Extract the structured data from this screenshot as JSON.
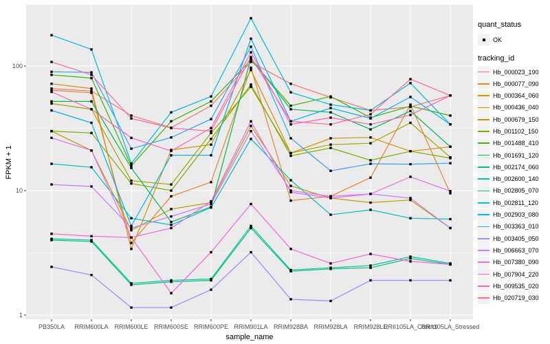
{
  "figure": {
    "background": "#ffffff",
    "panel_background": "#ebebeb",
    "grid_color": "#ffffff",
    "tick_mark_color": "#333333",
    "tick_label_color": "#4d4d4d",
    "point_color": "#000000",
    "legend_key_fill": "#f2f2f2"
  },
  "chart_data": {
    "type": "line",
    "title": "",
    "xlabel": "sample_name",
    "ylabel": "FPKM + 1",
    "y_scale": "log10",
    "y_major_ticks": [
      1,
      10,
      100
    ],
    "y_minor_ticks": [
      3.162,
      31.623
    ],
    "ylim": [
      0.9,
      310
    ],
    "grid": "major-and-minor, white on grey panel",
    "legend_position": "right",
    "point_shape": "small black square",
    "categories": [
      "PB350LA",
      "RRIM600LA",
      "RRIM600LE",
      "RRIM600SE",
      "RRIM600PE",
      "RRIM901LA",
      "RRIM928BA",
      "RRIM928LA",
      "RRIM928LE",
      "RRII105LA_Control",
      "RRII105LA_Stressed"
    ],
    "legend": {
      "quant_status_title": "quant_status",
      "ok_label": "OK",
      "tracking_id_title": "tracking_id"
    },
    "series": [
      {
        "name": "Hb_000023_190",
        "color": "#F8766D",
        "values": [
          66,
          63,
          40,
          32,
          48,
          108,
          72,
          56,
          44,
          47,
          58
        ]
      },
      {
        "name": "Hb_000077_090",
        "color": "#EA8331",
        "values": [
          64,
          61,
          3.8,
          9,
          11.7,
          97,
          8.3,
          9,
          12.7,
          49,
          9.5
        ]
      },
      {
        "name": "Hb_000364_060",
        "color": "#D89000",
        "values": [
          72,
          66,
          3.4,
          21.2,
          23.4,
          93,
          20,
          26.3,
          26.7,
          20.7,
          22.5
        ]
      },
      {
        "name": "Hb_000436_040",
        "color": "#C09B00",
        "values": [
          30,
          21,
          4.8,
          7.1,
          8,
          33,
          10.9,
          8.7,
          8,
          8.4,
          5
        ]
      },
      {
        "name": "Hb_000679_150",
        "color": "#A3A500",
        "values": [
          50,
          45,
          12,
          11.2,
          29,
          68,
          20,
          23.4,
          24,
          35,
          18.5
        ]
      },
      {
        "name": "Hb_001102_150",
        "color": "#7CAE00",
        "values": [
          30,
          29,
          11.4,
          10,
          26,
          71,
          19,
          22,
          17.5,
          20.7,
          18.2
        ]
      },
      {
        "name": "Hb_001488_410",
        "color": "#39B600",
        "values": [
          85,
          80,
          15.8,
          36,
          52,
          112,
          48,
          57,
          38.5,
          47.7,
          40
        ]
      },
      {
        "name": "Hb_001691_120",
        "color": "#00BB4E",
        "values": [
          52,
          52,
          15.2,
          5.6,
          7.4,
          116,
          45,
          42.5,
          31,
          43.5,
          22.5
        ]
      },
      {
        "name": "Hb_002174_060",
        "color": "#00BF7D",
        "values": [
          4,
          3.9,
          1.75,
          1.85,
          1.9,
          5,
          2.25,
          2.35,
          2.4,
          2.85,
          2.55
        ]
      },
      {
        "name": "Hb_002600_140",
        "color": "#00C1A3",
        "values": [
          4.1,
          4,
          1.8,
          1.9,
          1.95,
          5.2,
          2.3,
          2.4,
          2.5,
          2.95,
          2.6
        ]
      },
      {
        "name": "Hb_002805_070",
        "color": "#00BFC4",
        "values": [
          16.4,
          15.4,
          6,
          5.3,
          7.3,
          26,
          12.1,
          6.4,
          7,
          6,
          5.9
        ]
      },
      {
        "name": "Hb_002811_120",
        "color": "#00BAE0",
        "values": [
          177,
          136,
          16.5,
          42.5,
          57,
          242,
          61.5,
          49,
          44,
          73,
          34
        ]
      },
      {
        "name": "Hb_002903_080",
        "color": "#00B0F6",
        "values": [
          44,
          35,
          5.2,
          19.2,
          19.2,
          166,
          36,
          46,
          38,
          56.5,
          34
        ]
      },
      {
        "name": "Hb_003363_010",
        "color": "#35A2FF",
        "values": [
          90,
          89,
          21.7,
          26.7,
          37.5,
          143,
          26.3,
          14.4,
          16.4,
          16.3,
          16.6
        ]
      },
      {
        "name": "Hb_003405_050",
        "color": "#9590FF",
        "values": [
          2.44,
          2.1,
          1.15,
          1.15,
          1.6,
          3.2,
          1.34,
          1.3,
          1.9,
          1.9,
          1.9
        ]
      },
      {
        "name": "Hb_006663_070",
        "color": "#C77CFF",
        "values": [
          11.2,
          10.8,
          5,
          6.2,
          7.8,
          30,
          10,
          9,
          9.4,
          8.7,
          5
        ]
      },
      {
        "name": "Hb_007380_090",
        "color": "#E76BF3",
        "values": [
          26.5,
          21,
          4.2,
          5,
          8.2,
          36,
          9.7,
          8.7,
          9.4,
          12.9,
          9.9
        ]
      },
      {
        "name": "Hb_007904_220",
        "color": "#FA62DB",
        "values": [
          4.5,
          4.3,
          4.2,
          1.5,
          3.2,
          7.8,
          3.4,
          2.6,
          3.1,
          2.7,
          2.55
        ]
      },
      {
        "name": "Hb_009535_020",
        "color": "#FF62BC",
        "values": [
          62,
          45,
          26.5,
          20.8,
          31.8,
          129,
          34,
          38.5,
          34,
          40.5,
          58
        ]
      },
      {
        "name": "Hb_020719_030",
        "color": "#FF6A98",
        "values": [
          108,
          85,
          38,
          31.8,
          30,
          118,
          36,
          34,
          41,
          78.5,
          58
        ]
      }
    ]
  }
}
